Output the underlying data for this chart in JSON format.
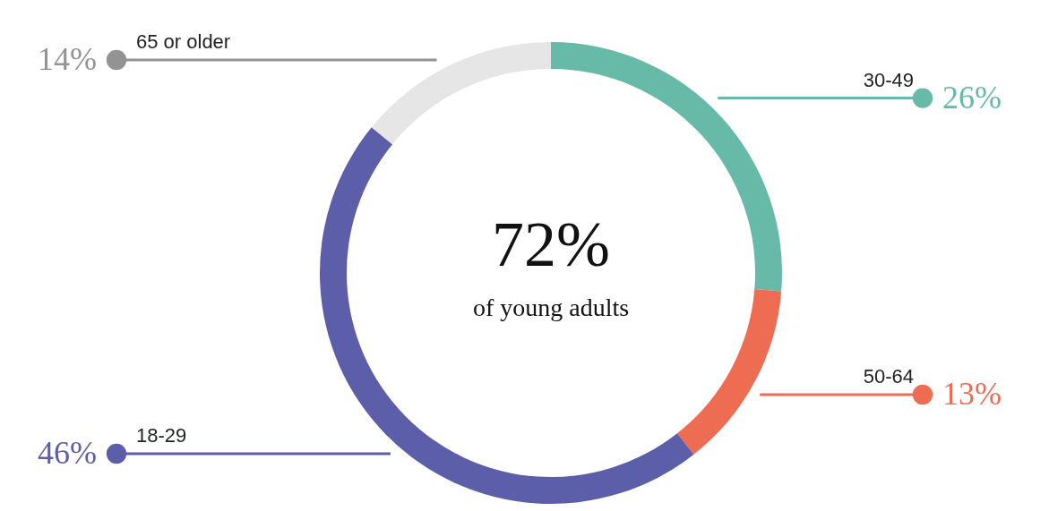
{
  "chart_data": {
    "type": "donut",
    "categories": [
      "30-49",
      "50-64",
      "18-29",
      "65 or older"
    ],
    "values": [
      26,
      13,
      46,
      14
    ],
    "colors": [
      "#67b9a8",
      "#ee6c52",
      "#5d5eaa",
      "#e6e6e6"
    ],
    "value_labels": [
      "26%",
      "13%",
      "46%",
      "14%"
    ],
    "annotations": [
      "72%",
      "of young adults"
    ]
  }
}
